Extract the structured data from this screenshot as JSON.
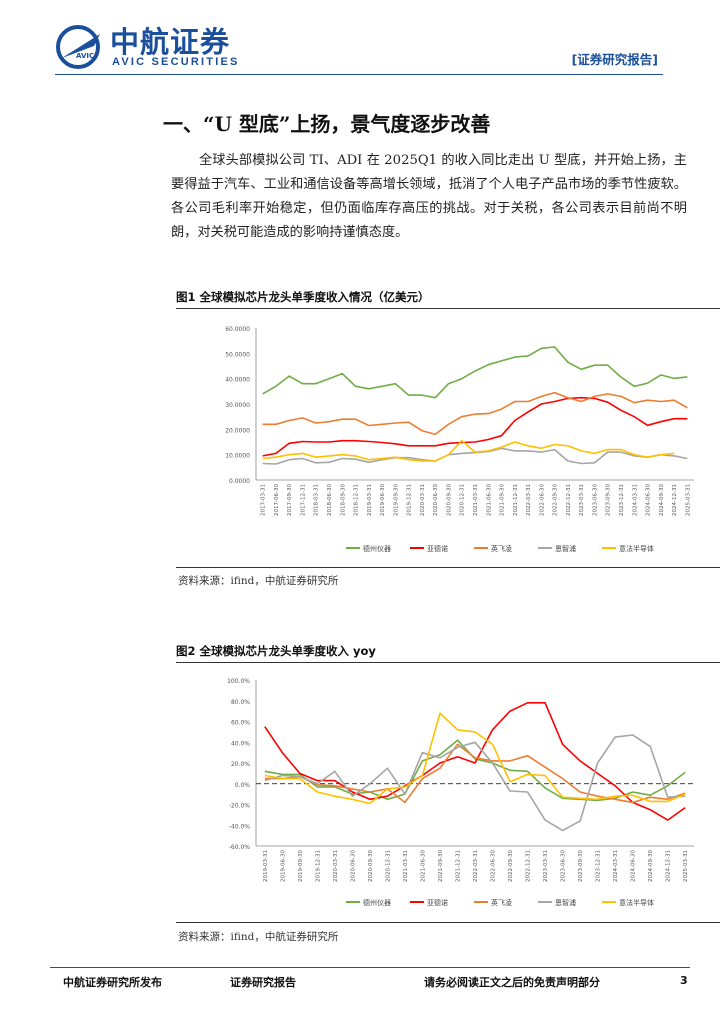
{
  "header": {
    "brand_cn": "中航证券",
    "brand_en": "AVIC SECURITIES",
    "logo_text": "AVIC",
    "report_tag": "[证券研究报告]"
  },
  "section_title": "一、“U 型底”上扬，景气度逐步改善",
  "paragraph": "全球头部模拟公司 TI、ADI 在 2025Q1 的收入同比走出 U 型底，并开始上扬，主要得益于汽车、工业和通信设备等高增长领域，抵消了个人电子产品市场的季节性疲软。各公司毛利率开始稳定，但仍面临库存高压的挑战。对于关税，各公司表示目前尚不明朗，对关税可能造成的影响持谨慎态度。",
  "figure1": {
    "title": "图1 全球模拟芯片龙头单季度收入情况（亿美元）",
    "source": "资料来源：ifind，中航证券研究所"
  },
  "figure2": {
    "title": "图2 全球模拟芯片龙头单季度收入 yoy",
    "source": "资料来源：ifind，中航证券研究所"
  },
  "footer": {
    "left": "中航证券研究所发布",
    "middle": "证券研究报告",
    "right": "请务必阅读正文之后的免责声明部分",
    "page": "3"
  },
  "chart_data": [
    {
      "type": "line",
      "title": "全球模拟芯片龙头单季度收入情况（亿美元）",
      "x": [
        "2017-03-31",
        "2017-06-30",
        "2017-09-30",
        "2017-12-31",
        "2018-03-31",
        "2018-06-30",
        "2018-09-30",
        "2018-12-31",
        "2019-03-31",
        "2019-06-30",
        "2019-09-30",
        "2019-12-31",
        "2020-03-31",
        "2020-06-30",
        "2020-09-30",
        "2020-12-31",
        "2021-03-31",
        "2021-06-30",
        "2021-09-30",
        "2021-12-31",
        "2022-03-31",
        "2022-06-30",
        "2022-09-30",
        "2022-12-31",
        "2023-03-31",
        "2023-06-30",
        "2023-09-30",
        "2023-12-31",
        "2024-03-31",
        "2024-06-30",
        "2024-09-30",
        "2024-12-31",
        "2025-03-31"
      ],
      "ylim": [
        0,
        60
      ],
      "yticks": [
        "0.0000",
        "10.0000",
        "20.0000",
        "30.0000",
        "40.0000",
        "50.0000",
        "60.0000"
      ],
      "series": [
        {
          "name": "德州仪器",
          "color": "#70ad47",
          "values": [
            34,
            37,
            41,
            38,
            38,
            40,
            42,
            37,
            36,
            37,
            38,
            33.5,
            33.5,
            32.5,
            38,
            40,
            43,
            45.5,
            47,
            48.5,
            49,
            52,
            52.5,
            46.5,
            43.7,
            45.3,
            45.3,
            40.6,
            37,
            38.2,
            41.5,
            40.1,
            40.7
          ]
        },
        {
          "name": "亚德诺",
          "color": "#ff0000",
          "values": [
            9.5,
            10.5,
            14.5,
            15.2,
            15.0,
            15.0,
            15.5,
            15.5,
            15.2,
            14.8,
            14.3,
            13.5,
            13.5,
            13.5,
            14.5,
            14.8,
            15,
            16,
            17.5,
            23.5,
            26.9,
            30,
            31,
            32.2,
            32.5,
            32.2,
            30.7,
            27.5,
            25,
            21.6,
            23,
            24.2,
            24.2
          ]
        },
        {
          "name": "英飞凌",
          "color": "#ed7d31",
          "values": [
            22,
            22,
            23.5,
            24.5,
            22.5,
            23,
            24,
            24,
            21.5,
            22,
            22.5,
            22.8,
            19.5,
            18,
            22,
            25,
            26,
            26.2,
            28,
            31,
            31,
            33,
            34.5,
            32.5,
            31,
            33,
            34,
            33,
            30.5,
            31.5,
            31,
            31.5,
            28.5
          ]
        },
        {
          "name": "恩智浦",
          "color": "#a5a5a5",
          "values": [
            6.5,
            6.3,
            8,
            8.5,
            6.8,
            7,
            8.5,
            8.2,
            7,
            8,
            8.8,
            8.8,
            8,
            7.5,
            10,
            10.5,
            10.8,
            11.2,
            12.5,
            11.5,
            11.5,
            11,
            12,
            7.5,
            6.5,
            6.8,
            11,
            11,
            9.5,
            9,
            10,
            9.5,
            8.5
          ]
        },
        {
          "name": "意法半导体",
          "color": "#ffc000",
          "values": [
            8.5,
            9,
            10,
            10.5,
            9,
            9.5,
            10,
            9.5,
            8,
            8.5,
            9,
            8,
            7.5,
            7.5,
            10,
            15.5,
            11,
            11.5,
            13,
            15,
            13.5,
            12.5,
            14,
            13.5,
            11.5,
            10.5,
            12,
            12,
            10,
            9,
            10,
            10.5,
            null
          ]
        }
      ]
    },
    {
      "type": "line",
      "title": "全球模拟芯片龙头单季度收入 yoy",
      "x": [
        "2019-03-31",
        "2019-06-30",
        "2019-09-30",
        "2019-12-31",
        "2020-03-31",
        "2020-06-30",
        "2020-09-30",
        "2020-12-31",
        "2021-03-31",
        "2021-06-30",
        "2021-09-30",
        "2021-12-31",
        "2022-03-31",
        "2022-06-30",
        "2022-09-30",
        "2022-12-31",
        "2023-03-31",
        "2023-06-30",
        "2023-09-30",
        "2023-12-31",
        "2024-03-31",
        "2024-06-30",
        "2024-09-30",
        "2024-12-31",
        "2025-03-31"
      ],
      "ylim": [
        -60,
        100
      ],
      "yticks": [
        "-60.0%",
        "-40.0%",
        "-20.0%",
        "0.0%",
        "20.0%",
        "40.0%",
        "60.0%",
        "80.0%",
        "100.0%"
      ],
      "series": [
        {
          "name": "德州仪器",
          "color": "#70ad47",
          "values": [
            12,
            9,
            9,
            -3,
            -3,
            -10,
            -8,
            -15,
            -10,
            22,
            28,
            42,
            24,
            20,
            13,
            12,
            -4,
            -14,
            -15,
            -16,
            -14,
            -8,
            -11,
            -2,
            11
          ]
        },
        {
          "name": "亚德诺",
          "color": "#ff0000",
          "values": [
            55,
            30,
            10,
            3,
            3,
            -8,
            -15,
            -12,
            -2,
            8,
            20,
            26,
            20,
            52,
            70,
            78,
            78,
            38,
            22,
            10,
            -2,
            -18,
            -25,
            -35,
            -23
          ]
        },
        {
          "name": "英飞凌",
          "color": "#ed7d31",
          "values": [
            5,
            5,
            7,
            -1,
            -2,
            -5,
            -8,
            -5,
            -18,
            5,
            15,
            38,
            25,
            22,
            22,
            27,
            16,
            5,
            -8,
            -12,
            -15,
            -18,
            -13,
            -15,
            -9
          ]
        },
        {
          "name": "恩智浦",
          "color": "#a5a5a5",
          "values": [
            3,
            8,
            7,
            0,
            12,
            -12,
            0,
            15,
            -10,
            30,
            25,
            35,
            40,
            20,
            -7,
            -8,
            -35,
            -45,
            -36,
            20,
            45,
            47,
            36,
            -13,
            -12
          ]
        },
        {
          "name": "意法半导体",
          "color": "#ffc000",
          "values": [
            8,
            5,
            5,
            -8,
            -12,
            -15,
            -19,
            -5,
            -3,
            8,
            68,
            52,
            50,
            38,
            2,
            9,
            8,
            -13,
            -14,
            -15,
            -12,
            -11,
            -17,
            -17,
            -10
          ]
        }
      ]
    }
  ]
}
